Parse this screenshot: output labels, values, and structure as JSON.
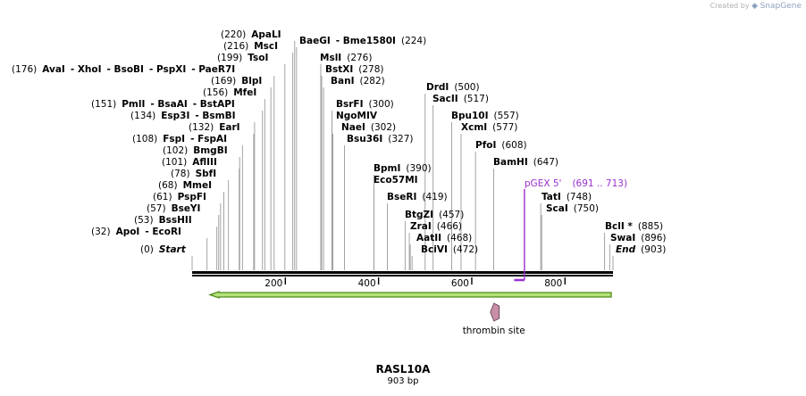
{
  "credit": {
    "prefix": "Created by",
    "brand": "SnapGene"
  },
  "plasmid": {
    "name": "RASL10A",
    "size_label": "903 bp",
    "length": 903
  },
  "axis": {
    "ticks": [
      200,
      400,
      600,
      800
    ]
  },
  "colors": {
    "backbone": "#000000",
    "arrow_fill": "#b6e27a",
    "arrow_stroke": "#4d8a1a",
    "primer": "#9a2fd0",
    "feature_fill": "#c78fa6",
    "leader": "#999999"
  },
  "sites": [
    {
      "parts": [
        {
          "t": "(0)",
          "s": "n"
        },
        {
          "t": "Start",
          "s": "i"
        }
      ],
      "pos": 0,
      "lx": 157,
      "ly": 283
    },
    {
      "parts": [
        {
          "t": "(32)",
          "s": "n"
        },
        {
          "t": "ApoI",
          "s": "b"
        },
        {
          "t": "- EcoRI",
          "s": "b"
        }
      ],
      "pos": 32,
      "lx": 102,
      "ly": 263
    },
    {
      "parts": [
        {
          "t": "(53)",
          "s": "n"
        },
        {
          "t": "BssHII",
          "s": "b"
        }
      ],
      "pos": 53,
      "lx": 150,
      "ly": 250
    },
    {
      "parts": [
        {
          "t": "(57)",
          "s": "n"
        },
        {
          "t": "BseYI",
          "s": "b"
        }
      ],
      "pos": 57,
      "lx": 164,
      "ly": 237
    },
    {
      "parts": [
        {
          "t": "(61)",
          "s": "n"
        },
        {
          "t": "PspFI",
          "s": "b"
        }
      ],
      "pos": 61,
      "lx": 171,
      "ly": 224
    },
    {
      "parts": [
        {
          "t": "(68)",
          "s": "n"
        },
        {
          "t": "MmeI",
          "s": "b"
        }
      ],
      "pos": 68,
      "lx": 177,
      "ly": 211
    },
    {
      "parts": [
        {
          "t": "(78)",
          "s": "n"
        },
        {
          "t": "SbfI",
          "s": "b"
        }
      ],
      "pos": 78,
      "lx": 191,
      "ly": 198
    },
    {
      "parts": [
        {
          "t": "(101)",
          "s": "n"
        },
        {
          "t": "AflIII",
          "s": "b"
        }
      ],
      "pos": 101,
      "lx": 181,
      "ly": 185
    },
    {
      "parts": [
        {
          "t": "(102)",
          "s": "n"
        },
        {
          "t": "BmgBI",
          "s": "b"
        }
      ],
      "pos": 102,
      "lx": 182,
      "ly": 172
    },
    {
      "parts": [
        {
          "t": "(108)",
          "s": "n"
        },
        {
          "t": "FspI",
          "s": "b"
        },
        {
          "t": "- FspAI",
          "s": "b"
        }
      ],
      "pos": 108,
      "lx": 148,
      "ly": 159
    },
    {
      "parts": [
        {
          "t": "(132)",
          "s": "n"
        },
        {
          "t": "EarI",
          "s": "b"
        }
      ],
      "pos": 132,
      "lx": 211,
      "ly": 146
    },
    {
      "parts": [
        {
          "t": "(134)",
          "s": "n"
        },
        {
          "t": "Esp3I",
          "s": "b"
        },
        {
          "t": "- BsmBI",
          "s": "b"
        }
      ],
      "pos": 134,
      "lx": 146,
      "ly": 133
    },
    {
      "parts": [
        {
          "t": "(151)",
          "s": "n"
        },
        {
          "t": "PmlI",
          "s": "b"
        },
        {
          "t": "- BsaAI",
          "s": "b"
        },
        {
          "t": "- BstAPI",
          "s": "b"
        }
      ],
      "pos": 151,
      "lx": 102,
      "ly": 120
    },
    {
      "parts": [
        {
          "t": "(156)",
          "s": "n"
        },
        {
          "t": "MfeI",
          "s": "b"
        }
      ],
      "pos": 156,
      "lx": 227,
      "ly": 107
    },
    {
      "parts": [
        {
          "t": "(169)",
          "s": "n"
        },
        {
          "t": "BlpI",
          "s": "b"
        }
      ],
      "pos": 169,
      "lx": 236,
      "ly": 94
    },
    {
      "parts": [
        {
          "t": "(176)",
          "s": "n"
        },
        {
          "t": "AvaI",
          "s": "b"
        },
        {
          "t": "- XhoI",
          "s": "b"
        },
        {
          "t": "- BsoBI",
          "s": "b"
        },
        {
          "t": "- PspXI",
          "s": "b"
        },
        {
          "t": "- PaeR7I",
          "s": "b"
        }
      ],
      "pos": 176,
      "lx": 13,
      "ly": 81
    },
    {
      "parts": [
        {
          "t": "(199)",
          "s": "n"
        },
        {
          "t": "TsoI",
          "s": "b"
        }
      ],
      "pos": 199,
      "lx": 243,
      "ly": 68
    },
    {
      "parts": [
        {
          "t": "(216)",
          "s": "n"
        },
        {
          "t": "MscI",
          "s": "b"
        }
      ],
      "pos": 216,
      "lx": 250,
      "ly": 55
    },
    {
      "parts": [
        {
          "t": "(220)",
          "s": "n"
        },
        {
          "t": "ApaLI",
          "s": "b"
        }
      ],
      "pos": 220,
      "lx": 247,
      "ly": 42
    },
    {
      "parts": [
        {
          "t": "BaeGI",
          "s": "b"
        },
        {
          "t": "- Bme1580I",
          "s": "b"
        },
        {
          "t": "(224)",
          "s": "n"
        }
      ],
      "pos": 224,
      "lx": 335,
      "ly": 49
    },
    {
      "parts": [
        {
          "t": "MslI",
          "s": "b"
        },
        {
          "t": "(276)",
          "s": "n"
        }
      ],
      "pos": 276,
      "lx": 358,
      "ly": 68
    },
    {
      "parts": [
        {
          "t": "BstXI",
          "s": "b"
        },
        {
          "t": "(278)",
          "s": "n"
        }
      ],
      "pos": 278,
      "lx": 364,
      "ly": 81
    },
    {
      "parts": [
        {
          "t": "BanI",
          "s": "b"
        },
        {
          "t": "(282)",
          "s": "n"
        }
      ],
      "pos": 282,
      "lx": 370,
      "ly": 94
    },
    {
      "parts": [
        {
          "t": "BsrFI",
          "s": "b"
        },
        {
          "t": "(300)",
          "s": "n"
        }
      ],
      "pos": 300,
      "lx": 376,
      "ly": 120
    },
    {
      "parts": [
        {
          "t": "NgoMIV",
          "s": "b"
        }
      ],
      "pos": 300,
      "lx": 376,
      "ly": 133
    },
    {
      "parts": [
        {
          "t": "NaeI",
          "s": "b"
        },
        {
          "t": "(302)",
          "s": "n"
        }
      ],
      "pos": 302,
      "lx": 382,
      "ly": 146
    },
    {
      "parts": [
        {
          "t": "Bsu36I",
          "s": "b"
        },
        {
          "t": "(327)",
          "s": "n"
        }
      ],
      "pos": 327,
      "lx": 388,
      "ly": 159
    },
    {
      "parts": [
        {
          "t": "BpmI",
          "s": "b"
        },
        {
          "t": "(390)",
          "s": "n"
        }
      ],
      "pos": 390,
      "lx": 418,
      "ly": 192
    },
    {
      "parts": [
        {
          "t": "Eco57MI",
          "s": "b"
        }
      ],
      "pos": 390,
      "lx": 418,
      "ly": 205
    },
    {
      "parts": [
        {
          "t": "BseRI",
          "s": "b"
        },
        {
          "t": "(419)",
          "s": "n"
        }
      ],
      "pos": 419,
      "lx": 433,
      "ly": 224
    },
    {
      "parts": [
        {
          "t": "DrdI",
          "s": "b"
        },
        {
          "t": "(500)",
          "s": "n"
        }
      ],
      "pos": 500,
      "lx": 477,
      "ly": 101
    },
    {
      "parts": [
        {
          "t": "SacII",
          "s": "b"
        },
        {
          "t": "(517)",
          "s": "n"
        }
      ],
      "pos": 517,
      "lx": 484,
      "ly": 114
    },
    {
      "parts": [
        {
          "t": "BtgZI",
          "s": "b"
        },
        {
          "t": "(457)",
          "s": "n"
        }
      ],
      "pos": 457,
      "lx": 453,
      "ly": 244
    },
    {
      "parts": [
        {
          "t": "ZraI",
          "s": "b"
        },
        {
          "t": "(466)",
          "s": "n"
        }
      ],
      "pos": 466,
      "lx": 459,
      "ly": 257
    },
    {
      "parts": [
        {
          "t": "AatII",
          "s": "b"
        },
        {
          "t": "(468)",
          "s": "n"
        }
      ],
      "pos": 468,
      "lx": 466,
      "ly": 270
    },
    {
      "parts": [
        {
          "t": "BciVI",
          "s": "b"
        },
        {
          "t": "(472)",
          "s": "n"
        }
      ],
      "pos": 472,
      "lx": 471,
      "ly": 283
    },
    {
      "parts": [
        {
          "t": "Bpu10I",
          "s": "b"
        },
        {
          "t": "(557)",
          "s": "n"
        }
      ],
      "pos": 557,
      "lx": 505,
      "ly": 133
    },
    {
      "parts": [
        {
          "t": "XcmI",
          "s": "b"
        },
        {
          "t": "(577)",
          "s": "n"
        }
      ],
      "pos": 577,
      "lx": 516,
      "ly": 146
    },
    {
      "parts": [
        {
          "t": "PfoI",
          "s": "b"
        },
        {
          "t": "(608)",
          "s": "n"
        }
      ],
      "pos": 608,
      "lx": 532,
      "ly": 166
    },
    {
      "parts": [
        {
          "t": "BamHI",
          "s": "b"
        },
        {
          "t": "(647)",
          "s": "n"
        }
      ],
      "pos": 647,
      "lx": 552,
      "ly": 185
    },
    {
      "parts": [
        {
          "t": "TatI",
          "s": "b"
        },
        {
          "t": "(748)",
          "s": "n"
        }
      ],
      "pos": 748,
      "lx": 606,
      "ly": 224
    },
    {
      "parts": [
        {
          "t": "ScaI",
          "s": "b"
        },
        {
          "t": "(750)",
          "s": "n"
        }
      ],
      "pos": 750,
      "lx": 611,
      "ly": 237
    },
    {
      "parts": [
        {
          "t": "BclI *",
          "s": "b"
        },
        {
          "t": "(885)",
          "s": "n"
        }
      ],
      "pos": 885,
      "lx": 677,
      "ly": 257
    },
    {
      "parts": [
        {
          "t": "SwaI",
          "s": "b"
        },
        {
          "t": "(896)",
          "s": "n"
        }
      ],
      "pos": 896,
      "lx": 683,
      "ly": 270
    },
    {
      "parts": [
        {
          "t": "End",
          "s": "i"
        },
        {
          "t": "(903)",
          "s": "n"
        }
      ],
      "pos": 903,
      "lx": 689,
      "ly": 283
    }
  ],
  "primer": {
    "name": "pGEX 5'",
    "range": "(691 .. 713)",
    "start": 691,
    "end": 713
  },
  "features": [
    {
      "name": "",
      "type": "arrow",
      "start": 0,
      "end": 903,
      "direction": "reverse"
    },
    {
      "name": "thrombin site",
      "type": "small-arrow",
      "start": 639,
      "end": 656,
      "direction": "reverse"
    }
  ]
}
